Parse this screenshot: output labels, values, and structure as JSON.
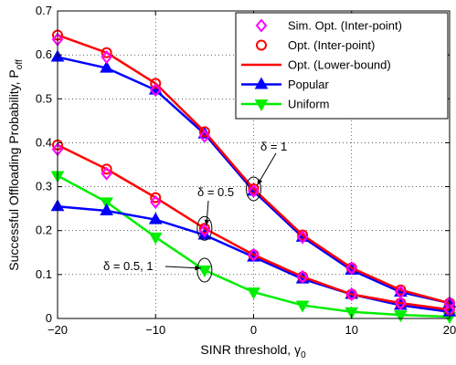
{
  "chart_data": {
    "type": "line",
    "xlabel": "SINR threshold, γ",
    "xlabel_sub": "0",
    "ylabel": "Successful Offloading Probability, P",
    "ylabel_sub": "off",
    "xlim": [
      -20,
      20
    ],
    "ylim": [
      0,
      0.7
    ],
    "xticks": [
      -20,
      -10,
      0,
      10,
      20
    ],
    "xtick_labels": [
      "−20",
      "−10",
      "0",
      "10",
      "20"
    ],
    "yticks": [
      0,
      0.1,
      0.2,
      0.3,
      0.4,
      0.5,
      0.6,
      0.7
    ],
    "ytick_labels": [
      "0",
      "0.1",
      "0.2",
      "0.3",
      "0.4",
      "0.5",
      "0.6",
      "0.7"
    ],
    "grid": true,
    "legend_position": "top-right",
    "x": [
      -20,
      -15,
      -10,
      -5,
      0,
      5,
      10,
      15,
      20
    ],
    "series": [
      {
        "name": "Sim. Opt. (Inter-point)",
        "group": "delta=1",
        "color": "#ff00ff",
        "marker": "diamond",
        "line": false,
        "values": [
          0.635,
          0.595,
          0.52,
          0.415,
          0.29,
          0.185,
          0.115,
          0.06,
          0.035
        ]
      },
      {
        "name": "Sim. Opt. (Inter-point)",
        "group": "delta=0.5",
        "color": "#ff00ff",
        "marker": "diamond",
        "line": false,
        "values": [
          0.385,
          0.33,
          0.265,
          0.2,
          0.145,
          0.095,
          0.055,
          0.035,
          0.02
        ]
      },
      {
        "name": "Opt. (Inter-point)",
        "group": "delta=1",
        "color": "#ff0000",
        "marker": "circle",
        "line": false,
        "values": [
          0.645,
          0.605,
          0.535,
          0.425,
          0.295,
          0.19,
          0.115,
          0.065,
          0.035
        ]
      },
      {
        "name": "Opt. (Inter-point)",
        "group": "delta=0.5",
        "color": "#ff0000",
        "marker": "circle",
        "line": false,
        "values": [
          0.395,
          0.34,
          0.275,
          0.205,
          0.145,
          0.095,
          0.055,
          0.035,
          0.02
        ]
      },
      {
        "name": "Opt. (Lower-bound)",
        "group": "delta=1",
        "color": "#ff0000",
        "marker": "none",
        "line": true,
        "values": [
          0.645,
          0.605,
          0.535,
          0.425,
          0.295,
          0.19,
          0.115,
          0.065,
          0.035
        ]
      },
      {
        "name": "Opt. (Lower-bound)",
        "group": "delta=0.5",
        "color": "#ff0000",
        "marker": "none",
        "line": true,
        "values": [
          0.395,
          0.34,
          0.275,
          0.205,
          0.145,
          0.095,
          0.055,
          0.035,
          0.02
        ]
      },
      {
        "name": "Popular",
        "group": "delta=1",
        "color": "#0000ff",
        "marker": "triangle-up",
        "line": true,
        "values": [
          0.595,
          0.57,
          0.52,
          0.42,
          0.29,
          0.185,
          0.11,
          0.06,
          0.035
        ]
      },
      {
        "name": "Popular",
        "group": "delta=0.5",
        "color": "#0000ff",
        "marker": "triangle-up",
        "line": true,
        "values": [
          0.255,
          0.245,
          0.225,
          0.19,
          0.14,
          0.09,
          0.055,
          0.03,
          0.015
        ]
      },
      {
        "name": "Uniform",
        "group": "delta=0.5, 1",
        "color": "#00ee00",
        "marker": "triangle-down",
        "line": true,
        "values": [
          0.325,
          0.265,
          0.185,
          0.11,
          0.06,
          0.03,
          0.015,
          0.008,
          0.004
        ]
      }
    ],
    "legend": [
      {
        "label": "Sim. Opt. (Inter-point)",
        "color": "#ff00ff",
        "marker": "diamond",
        "line": false
      },
      {
        "label": "Opt. (Inter-point)",
        "color": "#ff0000",
        "marker": "circle",
        "line": false
      },
      {
        "label": "Opt. (Lower-bound)",
        "color": "#ff0000",
        "marker": "none",
        "line": true
      },
      {
        "label": "Popular",
        "color": "#0000ff",
        "marker": "triangle-up",
        "line": true
      },
      {
        "label": "Uniform",
        "color": "#00ee00",
        "marker": "triangle-down",
        "line": true
      }
    ],
    "annotations": [
      {
        "text": "δ = 1",
        "target_x": 0,
        "target_y": 0.295
      },
      {
        "text": "δ = 0.5",
        "target_x": -5,
        "target_y": 0.205
      },
      {
        "text": "δ = 0.5, 1",
        "target_x": -5,
        "target_y": 0.11
      }
    ]
  }
}
